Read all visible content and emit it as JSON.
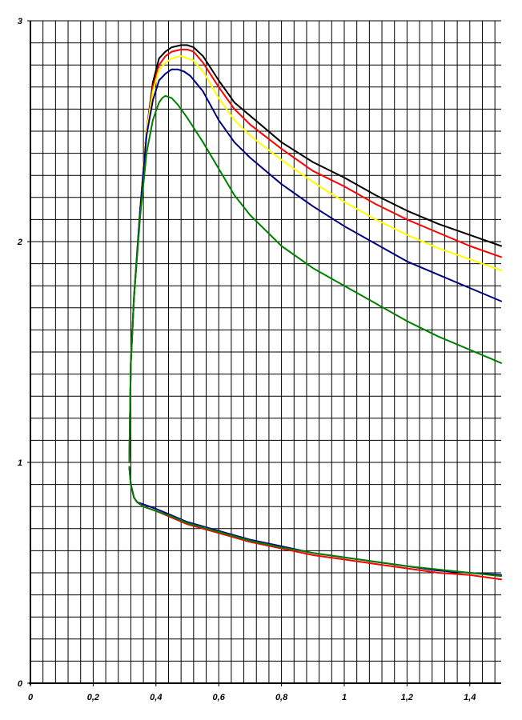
{
  "chart_data": {
    "type": "line",
    "title": "",
    "xlabel": "",
    "ylabel": "",
    "xlim": [
      0,
      1.5
    ],
    "ylim": [
      0,
      3
    ],
    "grid": true,
    "x_ticks": [
      "0",
      "0,2",
      "0,4",
      "0,6",
      "0,8",
      "1",
      "1,2",
      "1,4"
    ],
    "x_tick_values": [
      0,
      0.2,
      0.4,
      0.6,
      0.8,
      1.0,
      1.2,
      1.4
    ],
    "y_ticks": [
      "0",
      "1",
      "2",
      "3"
    ],
    "y_tick_values": [
      0,
      1,
      2,
      3
    ],
    "series": [
      {
        "color": "#000000",
        "x": [
          0.315,
          0.32,
          0.33,
          0.35,
          0.37,
          0.39,
          0.41,
          0.43,
          0.45,
          0.48,
          0.5,
          0.52,
          0.55,
          0.6,
          0.65,
          0.7,
          0.8,
          0.9,
          1.0,
          1.1,
          1.2,
          1.3,
          1.4,
          1.5
        ],
        "y": [
          1.0,
          1.45,
          1.75,
          2.15,
          2.5,
          2.72,
          2.83,
          2.86,
          2.88,
          2.89,
          2.89,
          2.88,
          2.84,
          2.73,
          2.63,
          2.57,
          2.45,
          2.36,
          2.29,
          2.21,
          2.14,
          2.08,
          2.03,
          1.98
        ]
      },
      {
        "color": "#ff0000",
        "x": [
          0.315,
          0.32,
          0.33,
          0.35,
          0.37,
          0.39,
          0.41,
          0.43,
          0.45,
          0.48,
          0.5,
          0.52,
          0.55,
          0.6,
          0.65,
          0.7,
          0.8,
          0.9,
          1.0,
          1.1,
          1.2,
          1.3,
          1.4,
          1.5
        ],
        "y": [
          1.0,
          1.45,
          1.75,
          2.15,
          2.5,
          2.7,
          2.8,
          2.84,
          2.86,
          2.87,
          2.87,
          2.86,
          2.81,
          2.7,
          2.6,
          2.53,
          2.42,
          2.32,
          2.25,
          2.17,
          2.1,
          2.04,
          1.98,
          1.93
        ]
      },
      {
        "color": "#ffff00",
        "x": [
          0.315,
          0.32,
          0.33,
          0.35,
          0.37,
          0.39,
          0.41,
          0.43,
          0.45,
          0.48,
          0.5,
          0.52,
          0.55,
          0.6,
          0.65,
          0.7,
          0.8,
          0.9,
          1.0,
          1.1,
          1.2,
          1.3,
          1.4,
          1.5
        ],
        "y": [
          1.0,
          1.45,
          1.75,
          2.15,
          2.5,
          2.68,
          2.78,
          2.81,
          2.83,
          2.84,
          2.83,
          2.82,
          2.77,
          2.65,
          2.55,
          2.48,
          2.37,
          2.27,
          2.18,
          2.1,
          2.03,
          1.97,
          1.92,
          1.87
        ]
      },
      {
        "color": "#00007f",
        "x": [
          0.315,
          0.32,
          0.33,
          0.35,
          0.37,
          0.39,
          0.41,
          0.43,
          0.45,
          0.47,
          0.49,
          0.51,
          0.55,
          0.6,
          0.65,
          0.7,
          0.8,
          0.9,
          1.0,
          1.1,
          1.2,
          1.3,
          1.4,
          1.5
        ],
        "y": [
          1.0,
          1.45,
          1.75,
          2.15,
          2.48,
          2.64,
          2.73,
          2.76,
          2.78,
          2.78,
          2.77,
          2.75,
          2.68,
          2.55,
          2.45,
          2.38,
          2.26,
          2.16,
          2.07,
          1.99,
          1.91,
          1.85,
          1.79,
          1.73
        ]
      },
      {
        "color": "#008000",
        "x": [
          0.315,
          0.32,
          0.33,
          0.35,
          0.37,
          0.39,
          0.41,
          0.42,
          0.43,
          0.45,
          0.47,
          0.5,
          0.55,
          0.6,
          0.65,
          0.7,
          0.8,
          0.9,
          1.0,
          1.1,
          1.2,
          1.3,
          1.4,
          1.5
        ],
        "y": [
          1.0,
          1.45,
          1.75,
          2.12,
          2.4,
          2.55,
          2.63,
          2.65,
          2.66,
          2.65,
          2.62,
          2.56,
          2.45,
          2.33,
          2.21,
          2.12,
          1.98,
          1.88,
          1.8,
          1.72,
          1.64,
          1.57,
          1.51,
          1.45
        ]
      },
      {
        "color": "#ff0000",
        "x": [
          0.315,
          0.32,
          0.33,
          0.34,
          0.36,
          0.4,
          0.45,
          0.5,
          0.6,
          0.7,
          0.8,
          0.9,
          1.0,
          1.1,
          1.2,
          1.3,
          1.4,
          1.5
        ],
        "y": [
          0.98,
          0.9,
          0.84,
          0.82,
          0.8,
          0.78,
          0.75,
          0.72,
          0.68,
          0.64,
          0.61,
          0.58,
          0.56,
          0.54,
          0.52,
          0.5,
          0.49,
          0.47
        ]
      },
      {
        "color": "#00007f",
        "x": [
          0.315,
          0.32,
          0.33,
          0.34,
          0.36,
          0.4,
          0.45,
          0.5,
          0.6,
          0.7,
          0.8,
          0.9,
          1.0,
          1.1,
          1.2,
          1.3,
          1.4,
          1.5
        ],
        "y": [
          0.98,
          0.9,
          0.84,
          0.82,
          0.81,
          0.79,
          0.76,
          0.73,
          0.69,
          0.65,
          0.62,
          0.59,
          0.57,
          0.55,
          0.53,
          0.51,
          0.5,
          0.49
        ]
      },
      {
        "color": "#008000",
        "x": [
          0.315,
          0.32,
          0.33,
          0.34,
          0.36,
          0.4,
          0.45,
          0.5,
          0.6,
          0.7,
          0.8,
          0.9,
          1.0,
          1.1,
          1.2,
          1.3,
          1.4,
          1.5
        ],
        "y": [
          0.98,
          0.9,
          0.84,
          0.82,
          0.8,
          0.78,
          0.755,
          0.725,
          0.685,
          0.645,
          0.615,
          0.59,
          0.57,
          0.55,
          0.53,
          0.515,
          0.5,
          0.485
        ]
      }
    ]
  }
}
